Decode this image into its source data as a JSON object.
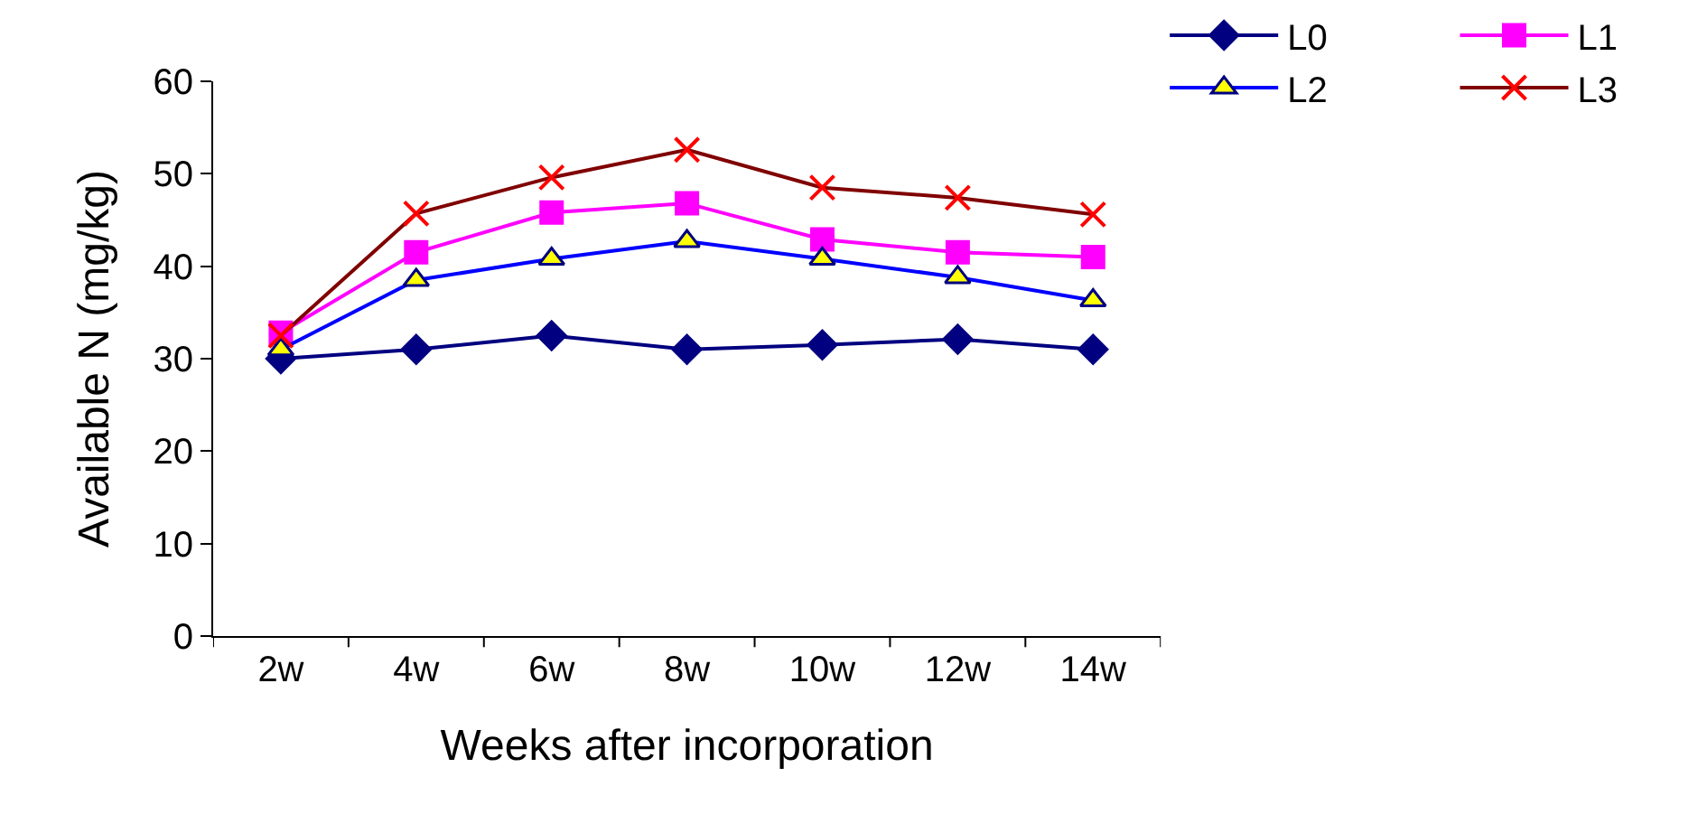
{
  "chart_data": {
    "type": "line",
    "xlabel": "Weeks after incorporation",
    "ylabel": "Available N (mg/kg)",
    "categories": [
      "2w",
      "4w",
      "6w",
      "8w",
      "10w",
      "12w",
      "14w"
    ],
    "ylim": [
      0,
      60
    ],
    "yticks": [
      0,
      10,
      20,
      30,
      40,
      50,
      60
    ],
    "grid": false,
    "legend": "top right",
    "line_style": "solid",
    "series": [
      {
        "name": "L0",
        "color": "#000080",
        "marker": "diamond",
        "values": [
          30,
          31,
          32.5,
          31,
          31.5,
          32.1,
          31
        ]
      },
      {
        "name": "L1",
        "color": "#ff00ff",
        "marker": "square",
        "values": [
          32.8,
          41.5,
          45.8,
          46.8,
          42.9,
          41.5,
          41
        ]
      },
      {
        "name": "L2",
        "color": "#0000ff",
        "marker": "triangle",
        "colors": [
          "#ffff00",
          "#ffff00",
          "#ffff00",
          "#ffff00",
          "#ffff00",
          "#ffff00",
          "#ffff00"
        ],
        "values": [
          31,
          38.5,
          40.8,
          42.7,
          40.8,
          38.8,
          36.3
        ]
      },
      {
        "name": "L3",
        "color": "#800000",
        "marker": "cross",
        "colors": [
          "#ff0000",
          "#ff0000",
          "#ff0000",
          "#ff0000",
          "#ff0000",
          "#ff0000",
          "#ff0000"
        ],
        "values": [
          32.5,
          45.7,
          49.6,
          52.6,
          48.5,
          47.4,
          45.6
        ]
      }
    ]
  }
}
